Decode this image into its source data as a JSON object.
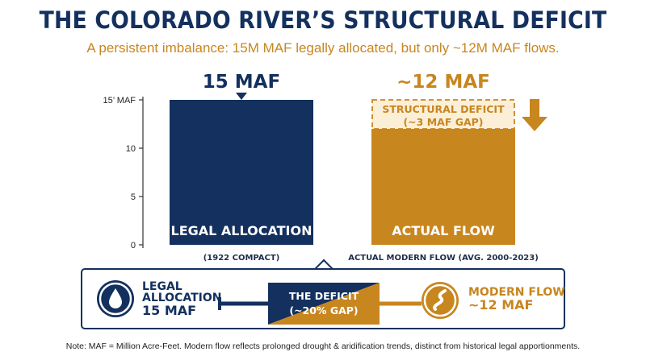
{
  "title": "THE COLORADO RIVER’S STRUCTURAL DEFICIT",
  "subtitle": "A persistent imbalance: 15M MAF legally allocated, but only ~12M MAF flows.",
  "colors": {
    "navy": "#13305e",
    "gold": "#c8861f",
    "deficit_fill": "#fbefd8"
  },
  "chart_data": {
    "type": "bar",
    "title": "THE COLORADO RIVER’S STRUCTURAL DEFICIT",
    "subtitle": "A persistent imbalance: 15M MAF legally allocated, but only ~12M MAF flows.",
    "categories": [
      "LEGAL ALLOCATION",
      "ACTUAL FLOW"
    ],
    "category_sublabels": [
      "(1922 COMPACT)",
      "ACTUAL MODERN FLOW (AVG. 2000-2023)"
    ],
    "values": [
      15,
      12
    ],
    "top_labels": [
      "15 MAF",
      "~12 MAF"
    ],
    "yticks": [
      0,
      5,
      10,
      15
    ],
    "ytick_labels": [
      "0",
      "5",
      "10",
      "15’ MAF"
    ],
    "ylim": [
      0,
      15
    ],
    "grid": false,
    "annotation": {
      "line1": "STRUCTURAL DEFICIT",
      "line2": "(~3 MAF GAP)",
      "from": 12,
      "to": 15
    }
  },
  "summary": {
    "legal_line1": "LEGAL",
    "legal_line2": "ALLOCATION",
    "legal_line3": "15 MAF",
    "deficit_line1": "THE DEFICIT",
    "deficit_line2": "(~20% GAP)",
    "modern_line1": "MODERN FLOW",
    "modern_line2": "~12 MAF",
    "legal_icon": "water-drop-icon",
    "modern_icon": "river-icon"
  },
  "note": "Note: MAF = Million Acre-Feet. Modern flow reflects prolonged drought & aridification trends, distinct from historical legal apportionments."
}
